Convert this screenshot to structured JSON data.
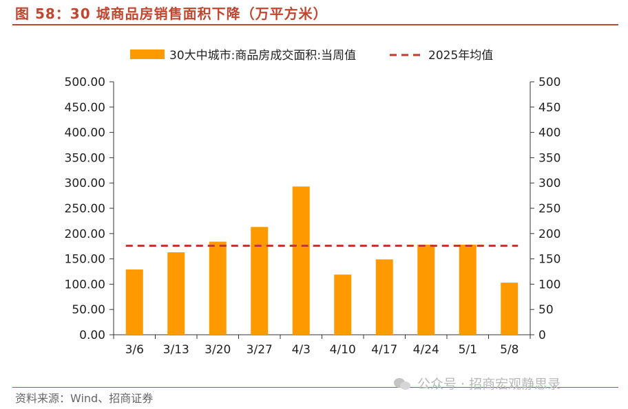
{
  "header": {
    "title": "图 58：30 城商品房销售面积下降（万平方米）"
  },
  "footer": {
    "source": "资料来源：Wind、招商证券",
    "watermark": "公众号 · 招商宏观静思录"
  },
  "colors": {
    "accent": "#c0462f",
    "bar": "#ff9900",
    "avg_line": "#c0392b"
  },
  "chart_data": {
    "type": "bar",
    "categories": [
      "3/6",
      "3/13",
      "3/20",
      "3/27",
      "4/3",
      "4/10",
      "4/17",
      "4/24",
      "5/1",
      "5/8"
    ],
    "series": [
      {
        "name": "30大中城市:商品房成交面积:当周值",
        "type": "bar",
        "values": [
          129,
          163,
          184,
          213,
          293,
          119,
          149,
          178,
          178,
          103
        ]
      },
      {
        "name": "2025年均值",
        "type": "line",
        "style": "dashed",
        "values": [
          176,
          176,
          176,
          176,
          176,
          176,
          176,
          176,
          176,
          176
        ]
      }
    ],
    "ylim": [
      0,
      500
    ],
    "y_ticks_left": [
      "0.00",
      "50.00",
      "100.00",
      "150.00",
      "200.00",
      "250.00",
      "300.00",
      "350.00",
      "400.00",
      "450.00",
      "500.00"
    ],
    "y_ticks_right": [
      "0",
      "50",
      "100",
      "150",
      "200",
      "250",
      "300",
      "350",
      "400",
      "450",
      "500"
    ],
    "legend_position": "top",
    "grid": false
  }
}
